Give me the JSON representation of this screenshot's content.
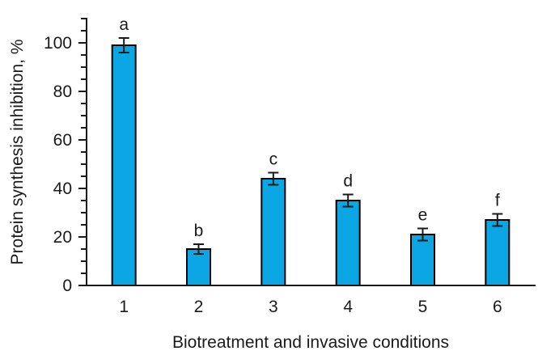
{
  "chart_data": {
    "type": "bar",
    "title": "",
    "xlabel": "Biotreatment and invasive conditions",
    "ylabel": "Protein synthesis inhibition, %",
    "categories": [
      "1",
      "2",
      "3",
      "4",
      "5",
      "6"
    ],
    "series": [
      {
        "name": "Protein synthesis inhibition",
        "values": [
          99,
          15,
          44,
          35,
          21,
          27
        ],
        "errors": [
          3,
          2,
          2.5,
          2.5,
          2.5,
          2.5
        ],
        "point_labels": [
          "a",
          "b",
          "c",
          "d",
          "e",
          "f"
        ]
      }
    ],
    "ylim": [
      0,
      110
    ],
    "ytick_labels": [
      0,
      20,
      40,
      60,
      80,
      100
    ],
    "ytick_major_step": 20,
    "ytick_minor_step": 5,
    "grid": "off",
    "legend": "none",
    "bar_fill_color": "#0AA7E4",
    "bar_border_color": "#000000",
    "axis_color": "#1a1a1a",
    "background_color": "#ffffff"
  }
}
